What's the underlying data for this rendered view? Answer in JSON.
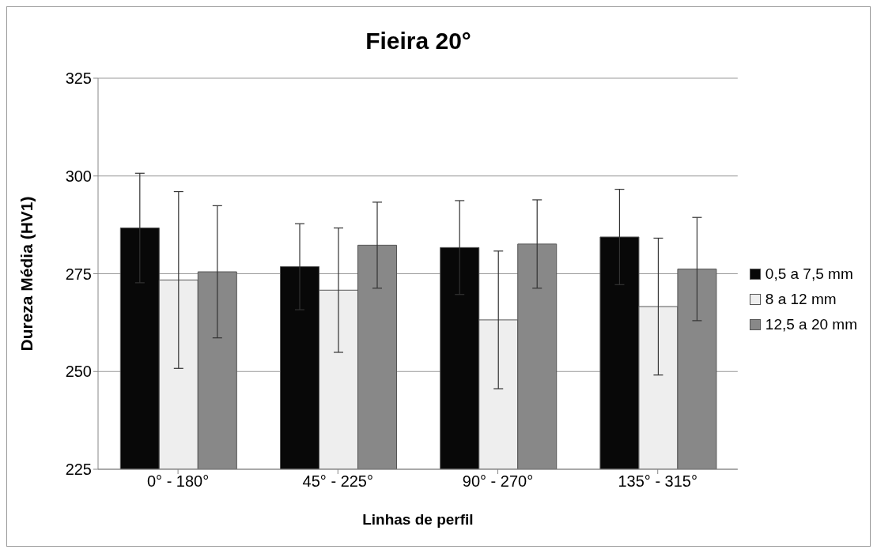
{
  "chart_data": {
    "type": "bar",
    "title": "Fieira 20°",
    "xlabel": "Linhas de perfil",
    "ylabel": "Dureza Média (HV1)",
    "categories": [
      "0° - 180°",
      "45° - 225°",
      "90° - 270°",
      "135° - 315°"
    ],
    "series": [
      {
        "name": "0,5 a 7,5 mm",
        "color": "#080808",
        "values": [
          286.7,
          276.8,
          281.7,
          284.4
        ],
        "errors": [
          14,
          11,
          12,
          12.2
        ]
      },
      {
        "name": "8 a 12 mm",
        "color": "#eeeeee",
        "values": [
          273.4,
          270.8,
          263.2,
          266.6
        ],
        "errors": [
          22.6,
          15.9,
          17.6,
          17.5
        ]
      },
      {
        "name": "12,5 a 20 mm",
        "color": "#888888",
        "values": [
          275.5,
          282.3,
          282.6,
          276.2
        ],
        "errors": [
          16.9,
          11,
          11.3,
          13.2
        ]
      }
    ],
    "ylim": [
      225,
      325
    ],
    "yticks": [
      225,
      250,
      275,
      300,
      325
    ],
    "grid": "y",
    "legend": "right"
  }
}
